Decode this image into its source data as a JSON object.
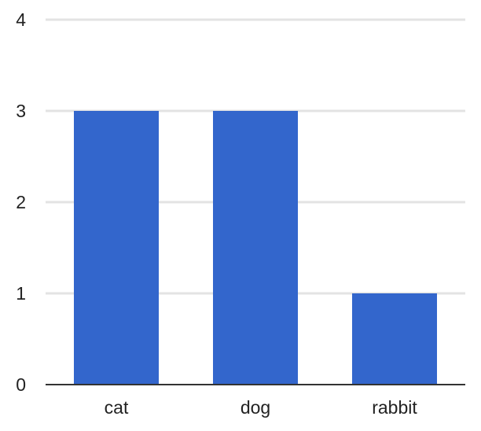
{
  "chart_data": {
    "type": "bar",
    "categories": [
      "cat",
      "dog",
      "rabbit"
    ],
    "values": [
      3,
      3,
      1
    ],
    "ylim": [
      0,
      4
    ],
    "yticks": [
      "0",
      "1",
      "2",
      "3",
      "4"
    ],
    "grid": true,
    "bar_color": "#3366cc",
    "gridline_color": "#e3e3e3",
    "axis_color": "#333333"
  }
}
